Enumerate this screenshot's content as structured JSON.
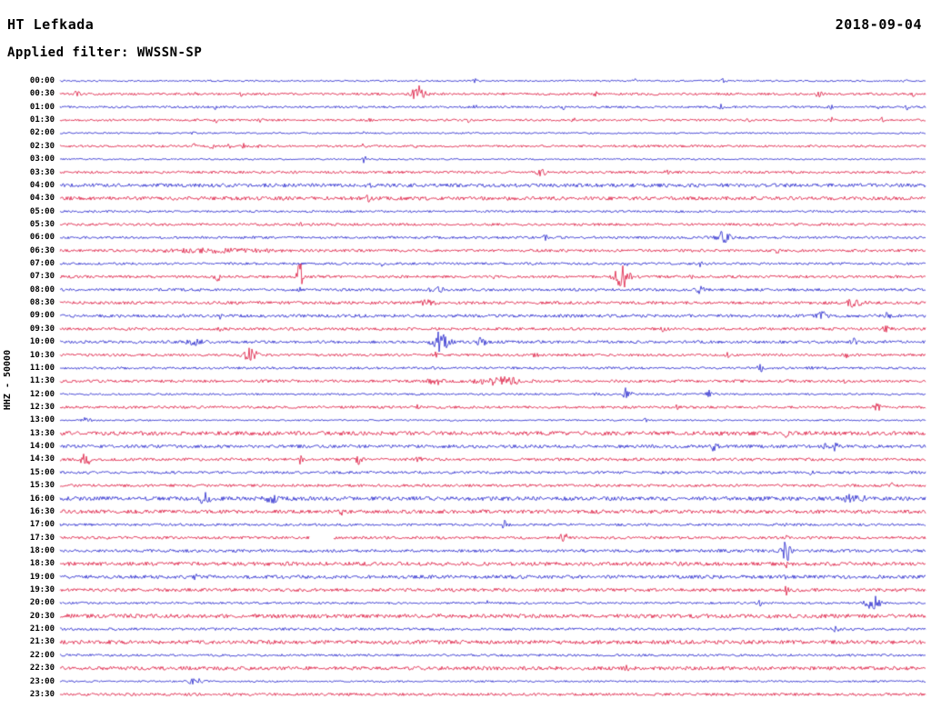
{
  "header": {
    "station": "HT Lefkada",
    "date": "2018-09-04",
    "filter_label": "Applied filter: WWSSN-SP"
  },
  "axis": {
    "y_label": "HHZ - 50000"
  },
  "colors": {
    "blue": "#2222cc",
    "red": "#dc143c",
    "text": "#000000",
    "background": "#ffffff"
  },
  "chart_data": {
    "type": "line",
    "subtype": "helicorder-seismogram",
    "station": "HT Lefkada",
    "channel_scale": "HHZ - 50000",
    "date": "2018-09-04",
    "filter": "WWSSN-SP",
    "minutes_per_row": 30,
    "legend": "alternating blue/red traces, one 30-minute trace per row",
    "rows": [
      {
        "label": "00:00",
        "color": "blue",
        "noise": 0.9,
        "events": [
          {
            "f": 0.178,
            "a": 2,
            "w": 1.5
          },
          {
            "f": 0.48,
            "a": 1.8,
            "w": 1.5
          },
          {
            "f": 0.665,
            "a": 2.2,
            "w": 1.5
          },
          {
            "f": 0.766,
            "a": 2,
            "w": 1.5
          },
          {
            "f": 0.975,
            "a": 2,
            "w": 2
          }
        ]
      },
      {
        "label": "00:30",
        "color": "red",
        "noise": 1.3,
        "events": [
          {
            "f": 0.02,
            "a": 4,
            "w": 2
          },
          {
            "f": 0.157,
            "a": 2.2,
            "w": 1.5
          },
          {
            "f": 0.21,
            "a": 2,
            "w": 1.5
          },
          {
            "f": 0.414,
            "a": 9,
            "w": 5
          },
          {
            "f": 0.619,
            "a": 2.2,
            "w": 1.5
          },
          {
            "f": 0.876,
            "a": 2.6,
            "w": 3
          },
          {
            "f": 0.986,
            "a": 2.2,
            "w": 1.5
          }
        ]
      },
      {
        "label": "01:00",
        "color": "blue",
        "noise": 1.2,
        "events": [
          {
            "f": 0.18,
            "a": 2.2,
            "w": 1.5
          },
          {
            "f": 0.349,
            "a": 2.4,
            "w": 1.5
          },
          {
            "f": 0.48,
            "a": 2.2,
            "w": 1.5
          },
          {
            "f": 0.582,
            "a": 2.2,
            "w": 1.5
          },
          {
            "f": 0.764,
            "a": 2.4,
            "w": 1.5
          },
          {
            "f": 0.89,
            "a": 2.2,
            "w": 1.5
          },
          {
            "f": 0.947,
            "a": 2.4,
            "w": 1.5
          },
          {
            "f": 0.979,
            "a": 2.2,
            "w": 1.5
          }
        ]
      },
      {
        "label": "01:30",
        "color": "red",
        "noise": 1.2,
        "events": [
          {
            "f": 0.18,
            "a": 2.4,
            "w": 1.5
          },
          {
            "f": 0.232,
            "a": 2.2,
            "w": 1.5
          },
          {
            "f": 0.356,
            "a": 2.4,
            "w": 1.5
          },
          {
            "f": 0.472,
            "a": 2.2,
            "w": 1.5
          },
          {
            "f": 0.593,
            "a": 2.2,
            "w": 1.5
          },
          {
            "f": 0.797,
            "a": 2.4,
            "w": 1.5
          },
          {
            "f": 0.892,
            "a": 2.2,
            "w": 1.5
          },
          {
            "f": 0.95,
            "a": 2.2,
            "w": 1.5
          }
        ]
      },
      {
        "label": "02:00",
        "color": "blue",
        "noise": 0.9,
        "events": [
          {
            "f": 0.154,
            "a": 2,
            "w": 1.5
          },
          {
            "f": 0.351,
            "a": 1.8,
            "w": 1.5
          }
        ]
      },
      {
        "label": "02:30",
        "color": "red",
        "noise": 1.3,
        "events": [
          {
            "f": 0.155,
            "a": 3,
            "w": 1.2
          },
          {
            "f": 0.175,
            "a": 3.4,
            "w": 1.2
          },
          {
            "f": 0.196,
            "a": 3,
            "w": 1.2
          },
          {
            "f": 0.212,
            "a": 2.6,
            "w": 1.2
          },
          {
            "f": 0.228,
            "a": 2.4,
            "w": 1.2
          },
          {
            "f": 0.351,
            "a": 2.6,
            "w": 1.5
          },
          {
            "f": 0.414,
            "a": 2,
            "w": 1.5
          }
        ]
      },
      {
        "label": "03:00",
        "color": "blue",
        "noise": 0.9,
        "events": [
          {
            "f": 0.351,
            "a": 7,
            "w": 1.5
          }
        ]
      },
      {
        "label": "03:30",
        "color": "red",
        "noise": 1.4,
        "events": [
          {
            "f": 0.556,
            "a": 3.5,
            "w": 4
          },
          {
            "f": 0.703,
            "a": 3,
            "w": 2.5
          }
        ]
      },
      {
        "label": "04:00",
        "color": "blue",
        "noise": 2.0,
        "events": [
          {
            "f": 0.356,
            "a": 2.5,
            "w": 2
          }
        ]
      },
      {
        "label": "04:30",
        "color": "red",
        "noise": 2.0,
        "events": [
          {
            "f": 0.356,
            "a": 2.5,
            "w": 2
          }
        ]
      },
      {
        "label": "05:00",
        "color": "blue",
        "noise": 1.2,
        "events": []
      },
      {
        "label": "05:30",
        "color": "red",
        "noise": 1.4,
        "events": [
          {
            "f": 0.277,
            "a": 2.5,
            "w": 1.2
          }
        ]
      },
      {
        "label": "06:00",
        "color": "blue",
        "noise": 1.4,
        "events": [
          {
            "f": 0.561,
            "a": 2.6,
            "w": 2
          },
          {
            "f": 0.766,
            "a": 7,
            "w": 5
          }
        ]
      },
      {
        "label": "06:30",
        "color": "red",
        "noise": 1.5,
        "events": [
          {
            "f": 0.18,
            "a": 1.6,
            "w": 40
          },
          {
            "f": 0.829,
            "a": 2.4,
            "w": 1.5
          }
        ]
      },
      {
        "label": "07:00",
        "color": "blue",
        "noise": 1.3,
        "events": [
          {
            "f": 0.372,
            "a": 2.4,
            "w": 1.5
          },
          {
            "f": 0.655,
            "a": 2.4,
            "w": 1.5
          },
          {
            "f": 0.739,
            "a": 2.6,
            "w": 2
          }
        ]
      },
      {
        "label": "07:30",
        "color": "red",
        "noise": 1.5,
        "events": [
          {
            "f": 0.183,
            "a": 4,
            "w": 3
          },
          {
            "f": 0.277,
            "a": 22,
            "w": 1.8
          },
          {
            "f": 0.503,
            "a": 2.6,
            "w": 1.5
          },
          {
            "f": 0.65,
            "a": 11,
            "w": 6
          },
          {
            "f": 0.729,
            "a": 3,
            "w": 2
          }
        ]
      },
      {
        "label": "08:00",
        "color": "blue",
        "noise": 1.5,
        "events": [
          {
            "f": 0.277,
            "a": 3,
            "w": 1.5
          },
          {
            "f": 0.435,
            "a": 5,
            "w": 4
          },
          {
            "f": 0.74,
            "a": 4,
            "w": 2.5
          }
        ]
      },
      {
        "label": "08:30",
        "color": "red",
        "noise": 1.6,
        "events": [
          {
            "f": 0.425,
            "a": 2.5,
            "w": 6
          },
          {
            "f": 0.918,
            "a": 4,
            "w": 6
          }
        ]
      },
      {
        "label": "09:00",
        "color": "blue",
        "noise": 1.7,
        "events": [
          {
            "f": 0.185,
            "a": 2.4,
            "w": 2
          },
          {
            "f": 0.881,
            "a": 3.5,
            "w": 4
          },
          {
            "f": 0.955,
            "a": 3.2,
            "w": 3
          }
        ]
      },
      {
        "label": "09:30",
        "color": "red",
        "noise": 1.5,
        "events": [
          {
            "f": 0.185,
            "a": 2.4,
            "w": 2
          },
          {
            "f": 0.697,
            "a": 2.5,
            "w": 2
          },
          {
            "f": 0.955,
            "a": 3,
            "w": 3
          }
        ]
      },
      {
        "label": "10:00",
        "color": "blue",
        "noise": 1.6,
        "events": [
          {
            "f": 0.155,
            "a": 3,
            "w": 6
          },
          {
            "f": 0.44,
            "a": 13,
            "w": 6
          },
          {
            "f": 0.487,
            "a": 5,
            "w": 3
          },
          {
            "f": 0.918,
            "a": 3,
            "w": 3
          }
        ]
      },
      {
        "label": "10:30",
        "color": "red",
        "noise": 1.4,
        "events": [
          {
            "f": 0.22,
            "a": 7,
            "w": 5
          },
          {
            "f": 0.435,
            "a": 3,
            "w": 2
          },
          {
            "f": 0.55,
            "a": 3,
            "w": 2
          },
          {
            "f": 0.771,
            "a": 2.5,
            "w": 2
          },
          {
            "f": 0.908,
            "a": 2.4,
            "w": 2
          }
        ]
      },
      {
        "label": "11:00",
        "color": "blue",
        "noise": 1.3,
        "events": [
          {
            "f": 0.435,
            "a": 2.2,
            "w": 2
          },
          {
            "f": 0.808,
            "a": 4,
            "w": 3
          },
          {
            "f": 0.866,
            "a": 2.4,
            "w": 1.5
          }
        ]
      },
      {
        "label": "11:30",
        "color": "red",
        "noise": 1.5,
        "events": [
          {
            "f": 0.435,
            "a": 3,
            "w": 6
          },
          {
            "f": 0.508,
            "a": 4,
            "w": 18
          },
          {
            "f": 0.908,
            "a": 2.2,
            "w": 1.5
          }
        ]
      },
      {
        "label": "12:00",
        "color": "blue",
        "noise": 1.1,
        "events": [
          {
            "f": 0.619,
            "a": 2.2,
            "w": 1.5
          },
          {
            "f": 0.655,
            "a": 7,
            "w": 3
          },
          {
            "f": 0.75,
            "a": 4,
            "w": 4
          }
        ]
      },
      {
        "label": "12:30",
        "color": "red",
        "noise": 1.4,
        "events": [
          {
            "f": 0.414,
            "a": 2.4,
            "w": 1.5
          },
          {
            "f": 0.713,
            "a": 2.5,
            "w": 2
          },
          {
            "f": 0.944,
            "a": 3,
            "w": 3
          }
        ]
      },
      {
        "label": "13:00",
        "color": "blue",
        "noise": 0.9,
        "events": [
          {
            "f": 0.03,
            "a": 2.4,
            "w": 4
          },
          {
            "f": 0.676,
            "a": 2,
            "w": 1.5
          }
        ]
      },
      {
        "label": "13:30",
        "color": "red",
        "noise": 2.2,
        "events": [
          {
            "f": 0.839,
            "a": 3,
            "w": 1.5
          }
        ]
      },
      {
        "label": "14:00",
        "color": "blue",
        "noise": 1.8,
        "events": [
          {
            "f": 0.755,
            "a": 4,
            "w": 3
          },
          {
            "f": 0.892,
            "a": 4,
            "w": 6
          }
        ]
      },
      {
        "label": "14:30",
        "color": "red",
        "noise": 1.6,
        "events": [
          {
            "f": 0.03,
            "a": 6,
            "w": 5
          },
          {
            "f": 0.277,
            "a": 4,
            "w": 2
          },
          {
            "f": 0.346,
            "a": 5,
            "w": 2.5
          },
          {
            "f": 0.414,
            "a": 3.5,
            "w": 2
          }
        ]
      },
      {
        "label": "15:00",
        "color": "blue",
        "noise": 1.5,
        "events": [
          {
            "f": 0.868,
            "a": 2.4,
            "w": 2
          }
        ]
      },
      {
        "label": "15:30",
        "color": "red",
        "noise": 1.5,
        "events": [
          {
            "f": 0.96,
            "a": 2.4,
            "w": 2
          }
        ]
      },
      {
        "label": "16:00",
        "color": "blue",
        "noise": 2.2,
        "events": [
          {
            "f": 0.167,
            "a": 6,
            "w": 4
          },
          {
            "f": 0.246,
            "a": 3,
            "w": 6
          },
          {
            "f": 0.918,
            "a": 3.5,
            "w": 8
          }
        ]
      },
      {
        "label": "16:30",
        "color": "red",
        "noise": 2.0,
        "events": [
          {
            "f": 0.325,
            "a": 2.6,
            "w": 1.5
          }
        ]
      },
      {
        "label": "17:00",
        "color": "blue",
        "noise": 1.4,
        "events": [
          {
            "f": 0.514,
            "a": 4,
            "w": 2.5
          },
          {
            "f": 0.839,
            "a": 2.6,
            "w": 1.2
          }
        ]
      },
      {
        "label": "17:30",
        "color": "red",
        "noise": 1.5,
        "gaps": [
          [
            0.288,
            0.316
          ]
        ],
        "events": [
          {
            "f": 0.582,
            "a": 6,
            "w": 2.5
          },
          {
            "f": 0.839,
            "a": 2.6,
            "w": 1.2
          }
        ]
      },
      {
        "label": "18:00",
        "color": "blue",
        "noise": 1.6,
        "events": [
          {
            "f": 0.839,
            "a": 13,
            "w": 3
          }
        ]
      },
      {
        "label": "18:30",
        "color": "red",
        "noise": 2.1,
        "events": [
          {
            "f": 0.839,
            "a": 3,
            "w": 1.5
          }
        ]
      },
      {
        "label": "19:00",
        "color": "blue",
        "noise": 1.9,
        "events": [
          {
            "f": 0.157,
            "a": 2.6,
            "w": 1.5
          },
          {
            "f": 0.839,
            "a": 2.6,
            "w": 1.2
          }
        ]
      },
      {
        "label": "19:30",
        "color": "red",
        "noise": 1.8,
        "events": [
          {
            "f": 0.839,
            "a": 5,
            "w": 1.5
          }
        ]
      },
      {
        "label": "20:00",
        "color": "blue",
        "noise": 1.2,
        "events": [
          {
            "f": 0.493,
            "a": 3,
            "w": 1
          },
          {
            "f": 0.808,
            "a": 3,
            "w": 2
          },
          {
            "f": 0.939,
            "a": 8,
            "w": 5
          }
        ]
      },
      {
        "label": "20:30",
        "color": "red",
        "noise": 2.2,
        "events": []
      },
      {
        "label": "21:00",
        "color": "blue",
        "noise": 1.4,
        "events": [
          {
            "f": 0.897,
            "a": 3,
            "w": 2.5
          }
        ]
      },
      {
        "label": "21:30",
        "color": "red",
        "noise": 2.1,
        "events": []
      },
      {
        "label": "22:00",
        "color": "blue",
        "noise": 1.3,
        "events": []
      },
      {
        "label": "22:30",
        "color": "red",
        "noise": 2.0,
        "events": [
          {
            "f": 0.655,
            "a": 2,
            "w": 2
          }
        ]
      },
      {
        "label": "23:00",
        "color": "blue",
        "noise": 1.0,
        "events": [
          {
            "f": 0.157,
            "a": 5,
            "w": 5
          }
        ]
      },
      {
        "label": "23:30",
        "color": "red",
        "noise": 1.5,
        "events": []
      }
    ]
  }
}
